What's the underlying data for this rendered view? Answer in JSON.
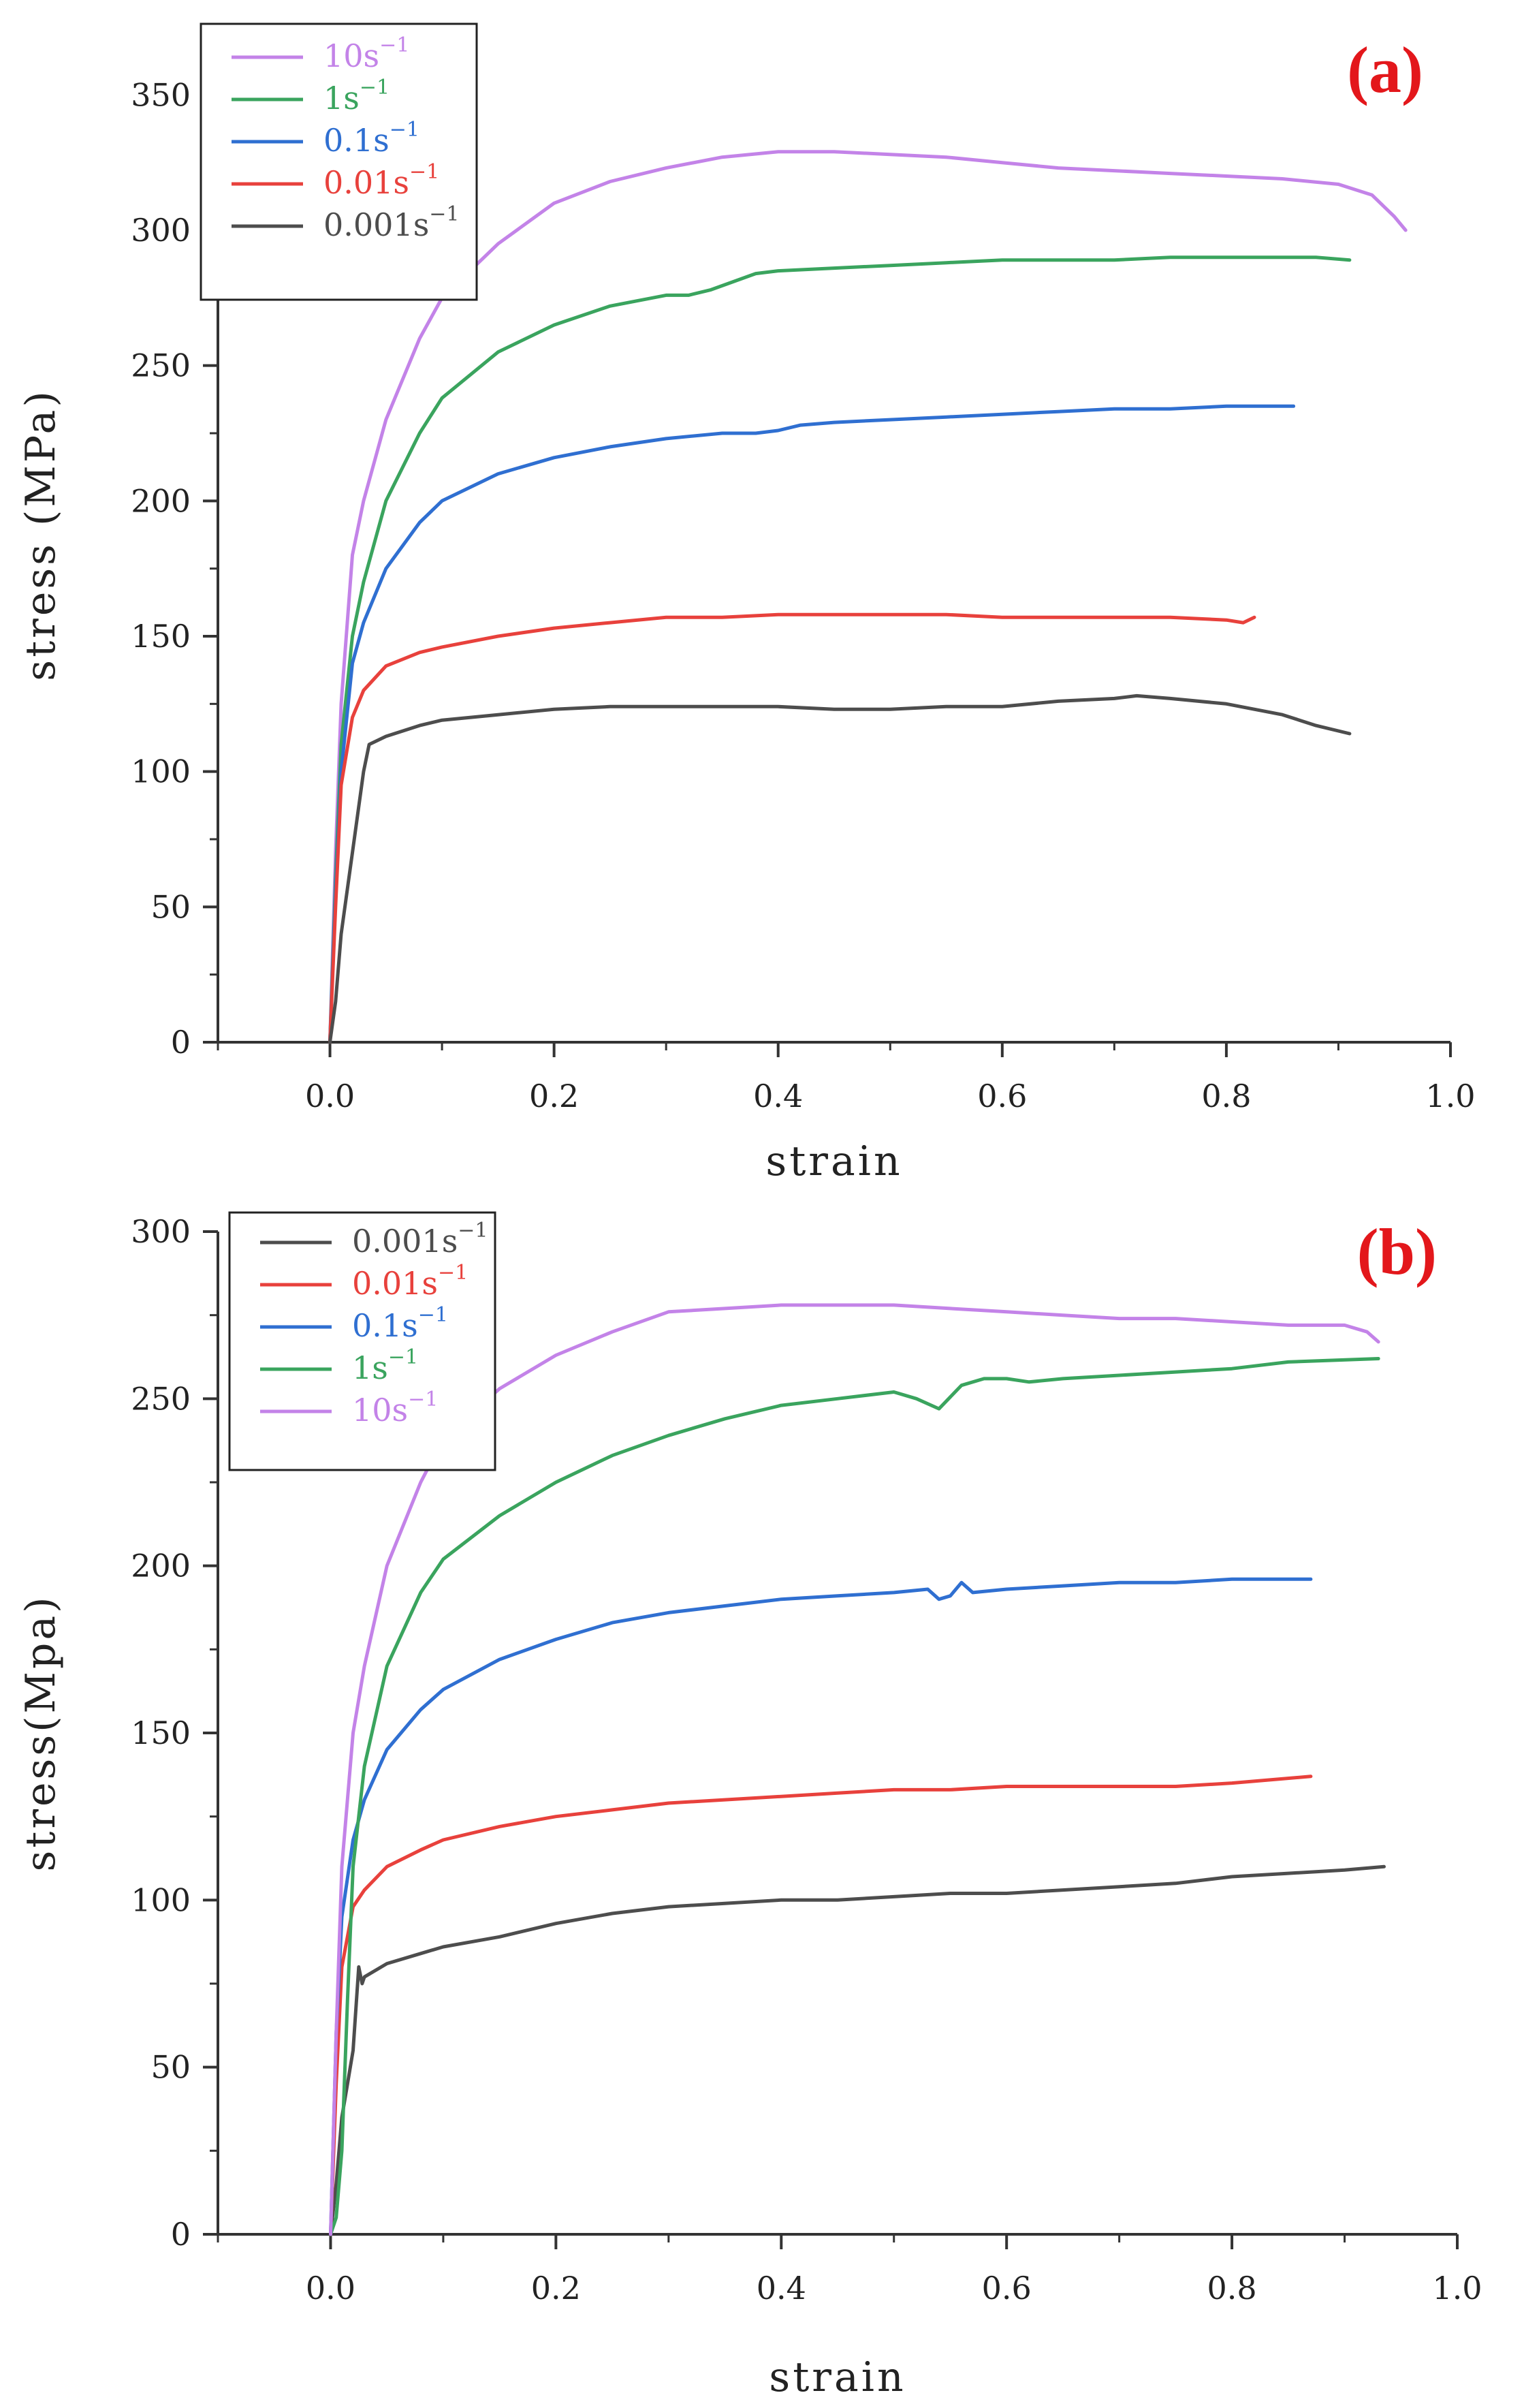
{
  "chart_data": [
    {
      "type": "line",
      "panel_label": "(a)",
      "xlabel": "strain",
      "ylabel": "stress (MPa)",
      "xlim": [
        -0.1,
        1.0
      ],
      "ylim": [
        0,
        375
      ],
      "xticks": [
        0.0,
        0.2,
        0.4,
        0.6,
        0.8,
        1.0
      ],
      "xtick_labels": [
        "0.0",
        "0.2",
        "0.4",
        "0.6",
        "0.8",
        "1.0"
      ],
      "yticks": [
        0,
        50,
        100,
        150,
        200,
        250,
        300,
        350
      ],
      "ytick_labels": [
        "0",
        "50",
        "100",
        "150",
        "200",
        "250",
        "300",
        "350"
      ],
      "legend_position": "top-left",
      "series": [
        {
          "name": "10s",
          "sup": "−1",
          "color": "#c383e8",
          "x": [
            0.0,
            0.005,
            0.01,
            0.02,
            0.03,
            0.05,
            0.08,
            0.1,
            0.15,
            0.2,
            0.25,
            0.3,
            0.35,
            0.4,
            0.45,
            0.5,
            0.55,
            0.6,
            0.65,
            0.7,
            0.75,
            0.8,
            0.85,
            0.9,
            0.93,
            0.95,
            0.96
          ],
          "y": [
            0,
            70,
            125,
            180,
            200,
            230,
            260,
            275,
            295,
            310,
            318,
            323,
            327,
            329,
            329,
            328,
            327,
            325,
            323,
            322,
            321,
            320,
            319,
            317,
            313,
            305,
            300
          ]
        },
        {
          "name": "1s",
          "sup": "−1",
          "color": "#3aa45e",
          "x": [
            0.0,
            0.005,
            0.01,
            0.02,
            0.03,
            0.05,
            0.08,
            0.1,
            0.15,
            0.2,
            0.25,
            0.3,
            0.32,
            0.34,
            0.36,
            0.38,
            0.4,
            0.45,
            0.5,
            0.55,
            0.6,
            0.65,
            0.7,
            0.75,
            0.8,
            0.85,
            0.88,
            0.91
          ],
          "y": [
            0,
            60,
            110,
            150,
            170,
            200,
            225,
            238,
            255,
            265,
            272,
            276,
            276,
            278,
            281,
            284,
            285,
            286,
            287,
            288,
            289,
            289,
            289,
            290,
            290,
            290,
            290,
            289
          ]
        },
        {
          "name": "0.1s",
          "sup": "−1",
          "color": "#2f6fd1",
          "x": [
            0.0,
            0.005,
            0.01,
            0.02,
            0.03,
            0.05,
            0.08,
            0.1,
            0.15,
            0.2,
            0.25,
            0.3,
            0.35,
            0.38,
            0.4,
            0.42,
            0.45,
            0.5,
            0.55,
            0.6,
            0.65,
            0.7,
            0.75,
            0.8,
            0.86
          ],
          "y": [
            0,
            55,
            100,
            140,
            155,
            175,
            192,
            200,
            210,
            216,
            220,
            223,
            225,
            225,
            226,
            228,
            229,
            230,
            231,
            232,
            233,
            234,
            234,
            235,
            235
          ]
        },
        {
          "name": "0.01s",
          "sup": "−1",
          "color": "#e8413c",
          "x": [
            0.0,
            0.005,
            0.01,
            0.02,
            0.03,
            0.05,
            0.08,
            0.1,
            0.15,
            0.2,
            0.25,
            0.3,
            0.35,
            0.4,
            0.45,
            0.5,
            0.55,
            0.6,
            0.65,
            0.7,
            0.75,
            0.8,
            0.815,
            0.825
          ],
          "y": [
            0,
            50,
            95,
            120,
            130,
            139,
            144,
            146,
            150,
            153,
            155,
            157,
            157,
            158,
            158,
            158,
            158,
            157,
            157,
            157,
            157,
            156,
            155,
            157
          ]
        },
        {
          "name": "0.001s",
          "sup": "−1",
          "color": "#4d4d4d",
          "x": [
            0.0,
            0.005,
            0.01,
            0.02,
            0.03,
            0.035,
            0.05,
            0.08,
            0.1,
            0.15,
            0.2,
            0.25,
            0.3,
            0.35,
            0.4,
            0.45,
            0.5,
            0.55,
            0.6,
            0.65,
            0.7,
            0.72,
            0.75,
            0.8,
            0.85,
            0.88,
            0.91
          ],
          "y": [
            0,
            15,
            40,
            70,
            100,
            110,
            113,
            117,
            119,
            121,
            123,
            124,
            124,
            124,
            124,
            123,
            123,
            124,
            124,
            126,
            127,
            128,
            127,
            125,
            121,
            117,
            114
          ]
        }
      ]
    },
    {
      "type": "line",
      "panel_label": "(b)",
      "xlabel": "strain",
      "ylabel": "stress(Mpa)",
      "xlim": [
        -0.1,
        1.0
      ],
      "ylim": [
        0,
        300
      ],
      "xticks": [
        0.0,
        0.2,
        0.4,
        0.6,
        0.8,
        1.0
      ],
      "xtick_labels": [
        "0.0",
        "0.2",
        "0.4",
        "0.6",
        "0.8",
        "1.0"
      ],
      "yticks": [
        0,
        50,
        100,
        150,
        200,
        250,
        300
      ],
      "ytick_labels": [
        "0",
        "50",
        "100",
        "150",
        "200",
        "250",
        "300"
      ],
      "legend_position": "top-left",
      "series": [
        {
          "name": "0.001s",
          "sup": "−1",
          "color": "#4d4d4d",
          "x": [
            0.0,
            0.005,
            0.01,
            0.015,
            0.02,
            0.025,
            0.028,
            0.03,
            0.05,
            0.08,
            0.1,
            0.15,
            0.2,
            0.25,
            0.3,
            0.35,
            0.4,
            0.45,
            0.5,
            0.55,
            0.6,
            0.65,
            0.7,
            0.75,
            0.8,
            0.85,
            0.9,
            0.935
          ],
          "y": [
            0,
            15,
            35,
            45,
            55,
            80,
            75,
            77,
            81,
            84,
            86,
            89,
            93,
            96,
            98,
            99,
            100,
            100,
            101,
            102,
            102,
            103,
            104,
            105,
            107,
            108,
            109,
            110
          ]
        },
        {
          "name": "0.01s",
          "sup": "−1",
          "color": "#e8413c",
          "x": [
            0.0,
            0.005,
            0.01,
            0.02,
            0.03,
            0.05,
            0.08,
            0.1,
            0.15,
            0.2,
            0.25,
            0.3,
            0.35,
            0.4,
            0.45,
            0.5,
            0.55,
            0.6,
            0.65,
            0.7,
            0.75,
            0.8,
            0.87
          ],
          "y": [
            0,
            45,
            80,
            98,
            103,
            110,
            115,
            118,
            122,
            125,
            127,
            129,
            130,
            131,
            132,
            133,
            133,
            134,
            134,
            134,
            134,
            135,
            137
          ]
        },
        {
          "name": "0.1s",
          "sup": "−1",
          "color": "#2f6fd1",
          "x": [
            0.0,
            0.005,
            0.01,
            0.02,
            0.03,
            0.05,
            0.08,
            0.1,
            0.15,
            0.2,
            0.25,
            0.3,
            0.35,
            0.4,
            0.45,
            0.5,
            0.53,
            0.54,
            0.55,
            0.56,
            0.57,
            0.6,
            0.65,
            0.7,
            0.75,
            0.8,
            0.87
          ],
          "y": [
            0,
            60,
            95,
            118,
            130,
            145,
            157,
            163,
            172,
            178,
            183,
            186,
            188,
            190,
            191,
            192,
            193,
            190,
            191,
            195,
            192,
            193,
            194,
            195,
            195,
            196,
            196
          ]
        },
        {
          "name": "1s",
          "sup": "−1",
          "color": "#3aa45e",
          "x": [
            0.0,
            0.005,
            0.01,
            0.015,
            0.02,
            0.03,
            0.05,
            0.08,
            0.1,
            0.15,
            0.2,
            0.25,
            0.3,
            0.35,
            0.4,
            0.45,
            0.5,
            0.52,
            0.54,
            0.56,
            0.58,
            0.6,
            0.62,
            0.65,
            0.7,
            0.75,
            0.8,
            0.85,
            0.93
          ],
          "y": [
            0,
            5,
            25,
            70,
            110,
            140,
            170,
            192,
            202,
            215,
            225,
            233,
            239,
            244,
            248,
            250,
            252,
            250,
            247,
            254,
            256,
            256,
            255,
            256,
            257,
            258,
            259,
            261,
            262
          ]
        },
        {
          "name": "10s",
          "sup": "−1",
          "color": "#c383e8",
          "x": [
            0.0,
            0.005,
            0.01,
            0.02,
            0.03,
            0.05,
            0.08,
            0.1,
            0.15,
            0.2,
            0.25,
            0.3,
            0.35,
            0.4,
            0.45,
            0.5,
            0.55,
            0.6,
            0.65,
            0.7,
            0.75,
            0.8,
            0.85,
            0.9,
            0.92,
            0.93
          ],
          "y": [
            0,
            60,
            110,
            150,
            170,
            200,
            225,
            238,
            253,
            263,
            270,
            276,
            277,
            278,
            278,
            278,
            277,
            276,
            275,
            274,
            274,
            273,
            272,
            272,
            270,
            267
          ]
        }
      ]
    }
  ]
}
